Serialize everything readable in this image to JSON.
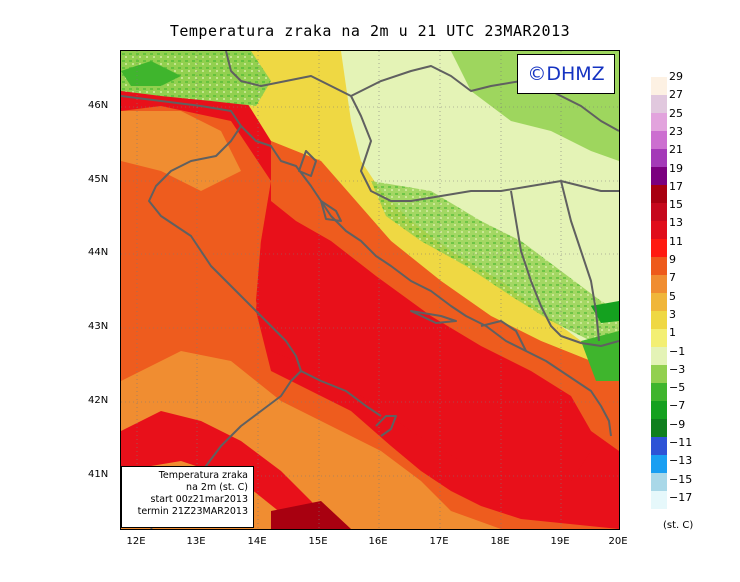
{
  "title": "Temperatura zraka na 2m u 21 UTC 23MAR2013",
  "copyright": "©DHMZ",
  "lat_labels": [
    "46N",
    "45N",
    "44N",
    "43N",
    "42N",
    "41N"
  ],
  "lon_labels": [
    "12E",
    "13E",
    "14E",
    "15E",
    "16E",
    "17E",
    "18E",
    "19E",
    "20E"
  ],
  "info_box": {
    "line1": "Temperatura zraka",
    "line2": "na 2m (st. C)",
    "line3": "start 00z21mar2013",
    "line4": "termin 21Z23MAR2013"
  },
  "colorbar": {
    "labels": [
      "29",
      "27",
      "25",
      "23",
      "21",
      "19",
      "17",
      "15",
      "13",
      "11",
      "9",
      "7",
      "5",
      "3",
      "1",
      "−1",
      "−3",
      "−5",
      "−7",
      "−9",
      "−11",
      "−13",
      "−15",
      "−17"
    ],
    "colors": [
      "#fdf1e3",
      "#e1c8de",
      "#e2a3dd",
      "#cc6fd0",
      "#a43ab8",
      "#7b007f",
      "#a80010",
      "#c6081c",
      "#e00d1b",
      "#ff1a10",
      "#ee5a1b",
      "#f08d31",
      "#f0b63a",
      "#efd843",
      "#f3ef73",
      "#e4f3b6",
      "#92d04f",
      "#3fb52d",
      "#14a11f",
      "#0f7f1e",
      "#2d53d6",
      "#199ff2",
      "#a9d8e8",
      "#e6f8fb"
    ],
    "unit": "(st. C)"
  },
  "legend_colors": {
    "sea_warm": "#e8101a",
    "sea_mid": "#ee5c1e",
    "coast": "#f08d31",
    "land_mild": "#efd843",
    "land_cool": "#e4f3b6",
    "land_cold": "#92d04f",
    "border": "#606060"
  }
}
